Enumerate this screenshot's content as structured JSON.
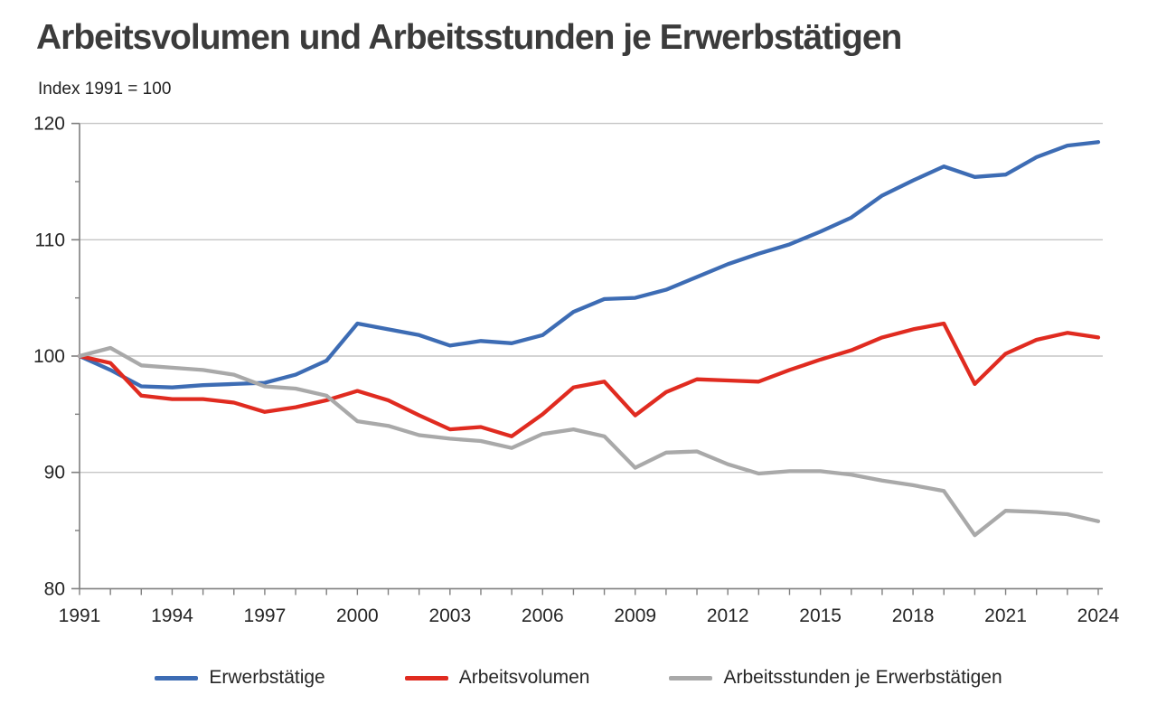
{
  "title": "Arbeitsvolumen und Arbeitsstunden je Erwerbstätigen",
  "subtitle": "Index 1991 = 100",
  "chart_data": {
    "type": "line",
    "title": "Arbeitsvolumen und Arbeitsstunden je Erwerbstätigen",
    "subtitle": "Index 1991 = 100",
    "x": [
      1991,
      1992,
      1993,
      1994,
      1995,
      1996,
      1997,
      1998,
      1999,
      2000,
      2001,
      2002,
      2003,
      2004,
      2005,
      2006,
      2007,
      2008,
      2009,
      2010,
      2011,
      2012,
      2013,
      2014,
      2015,
      2016,
      2017,
      2018,
      2019,
      2020,
      2021,
      2022,
      2023,
      2024
    ],
    "series": [
      {
        "name": "Erwerbstätige",
        "color": "#3d6cb4",
        "values": [
          100.0,
          98.8,
          97.4,
          97.3,
          97.5,
          97.6,
          97.7,
          98.4,
          99.6,
          102.8,
          102.3,
          101.8,
          100.9,
          101.3,
          101.1,
          101.8,
          103.8,
          104.9,
          105.0,
          105.7,
          106.8,
          107.9,
          108.8,
          109.6,
          110.7,
          111.9,
          113.8,
          115.1,
          116.3,
          115.4,
          115.6,
          117.1,
          118.1,
          118.4
        ]
      },
      {
        "name": "Arbeitsvolumen",
        "color": "#e02b20",
        "values": [
          100.0,
          99.4,
          96.6,
          96.3,
          96.3,
          96.0,
          95.2,
          95.6,
          96.2,
          97.0,
          96.2,
          94.9,
          93.7,
          93.9,
          93.1,
          95.0,
          97.3,
          97.8,
          94.9,
          96.9,
          98.0,
          97.9,
          97.8,
          98.8,
          99.7,
          100.5,
          101.6,
          102.3,
          102.8,
          97.6,
          100.2,
          101.4,
          102.0,
          101.6
        ]
      },
      {
        "name": "Arbeitsstunden je Erwerbstätigen",
        "color": "#a9a9a9",
        "values": [
          100.0,
          100.7,
          99.2,
          99.0,
          98.8,
          98.4,
          97.4,
          97.2,
          96.6,
          94.4,
          94.0,
          93.2,
          92.9,
          92.7,
          92.1,
          93.3,
          93.7,
          93.1,
          90.4,
          91.7,
          91.8,
          90.7,
          89.9,
          90.1,
          90.1,
          89.8,
          89.3,
          88.9,
          88.4,
          84.6,
          86.7,
          86.6,
          86.4,
          85.8
        ]
      }
    ],
    "ylim": [
      80,
      120
    ],
    "yticks": [
      80,
      90,
      100,
      110,
      120
    ],
    "yticks_minor": [
      85,
      95,
      105,
      115
    ],
    "xticks_labeled": [
      1991,
      1994,
      1997,
      2000,
      2003,
      2006,
      2009,
      2012,
      2015,
      2018,
      2021,
      2024
    ],
    "grid": "horizontal gridlines at 90, 100, 110, 120",
    "legend_position": "bottom"
  },
  "colors": {
    "background": "#ffffff",
    "gridline": "#c6c6c6",
    "axis": "#7f7f7f",
    "tick_label": "#262626",
    "title_text": "#3b3b3b"
  }
}
